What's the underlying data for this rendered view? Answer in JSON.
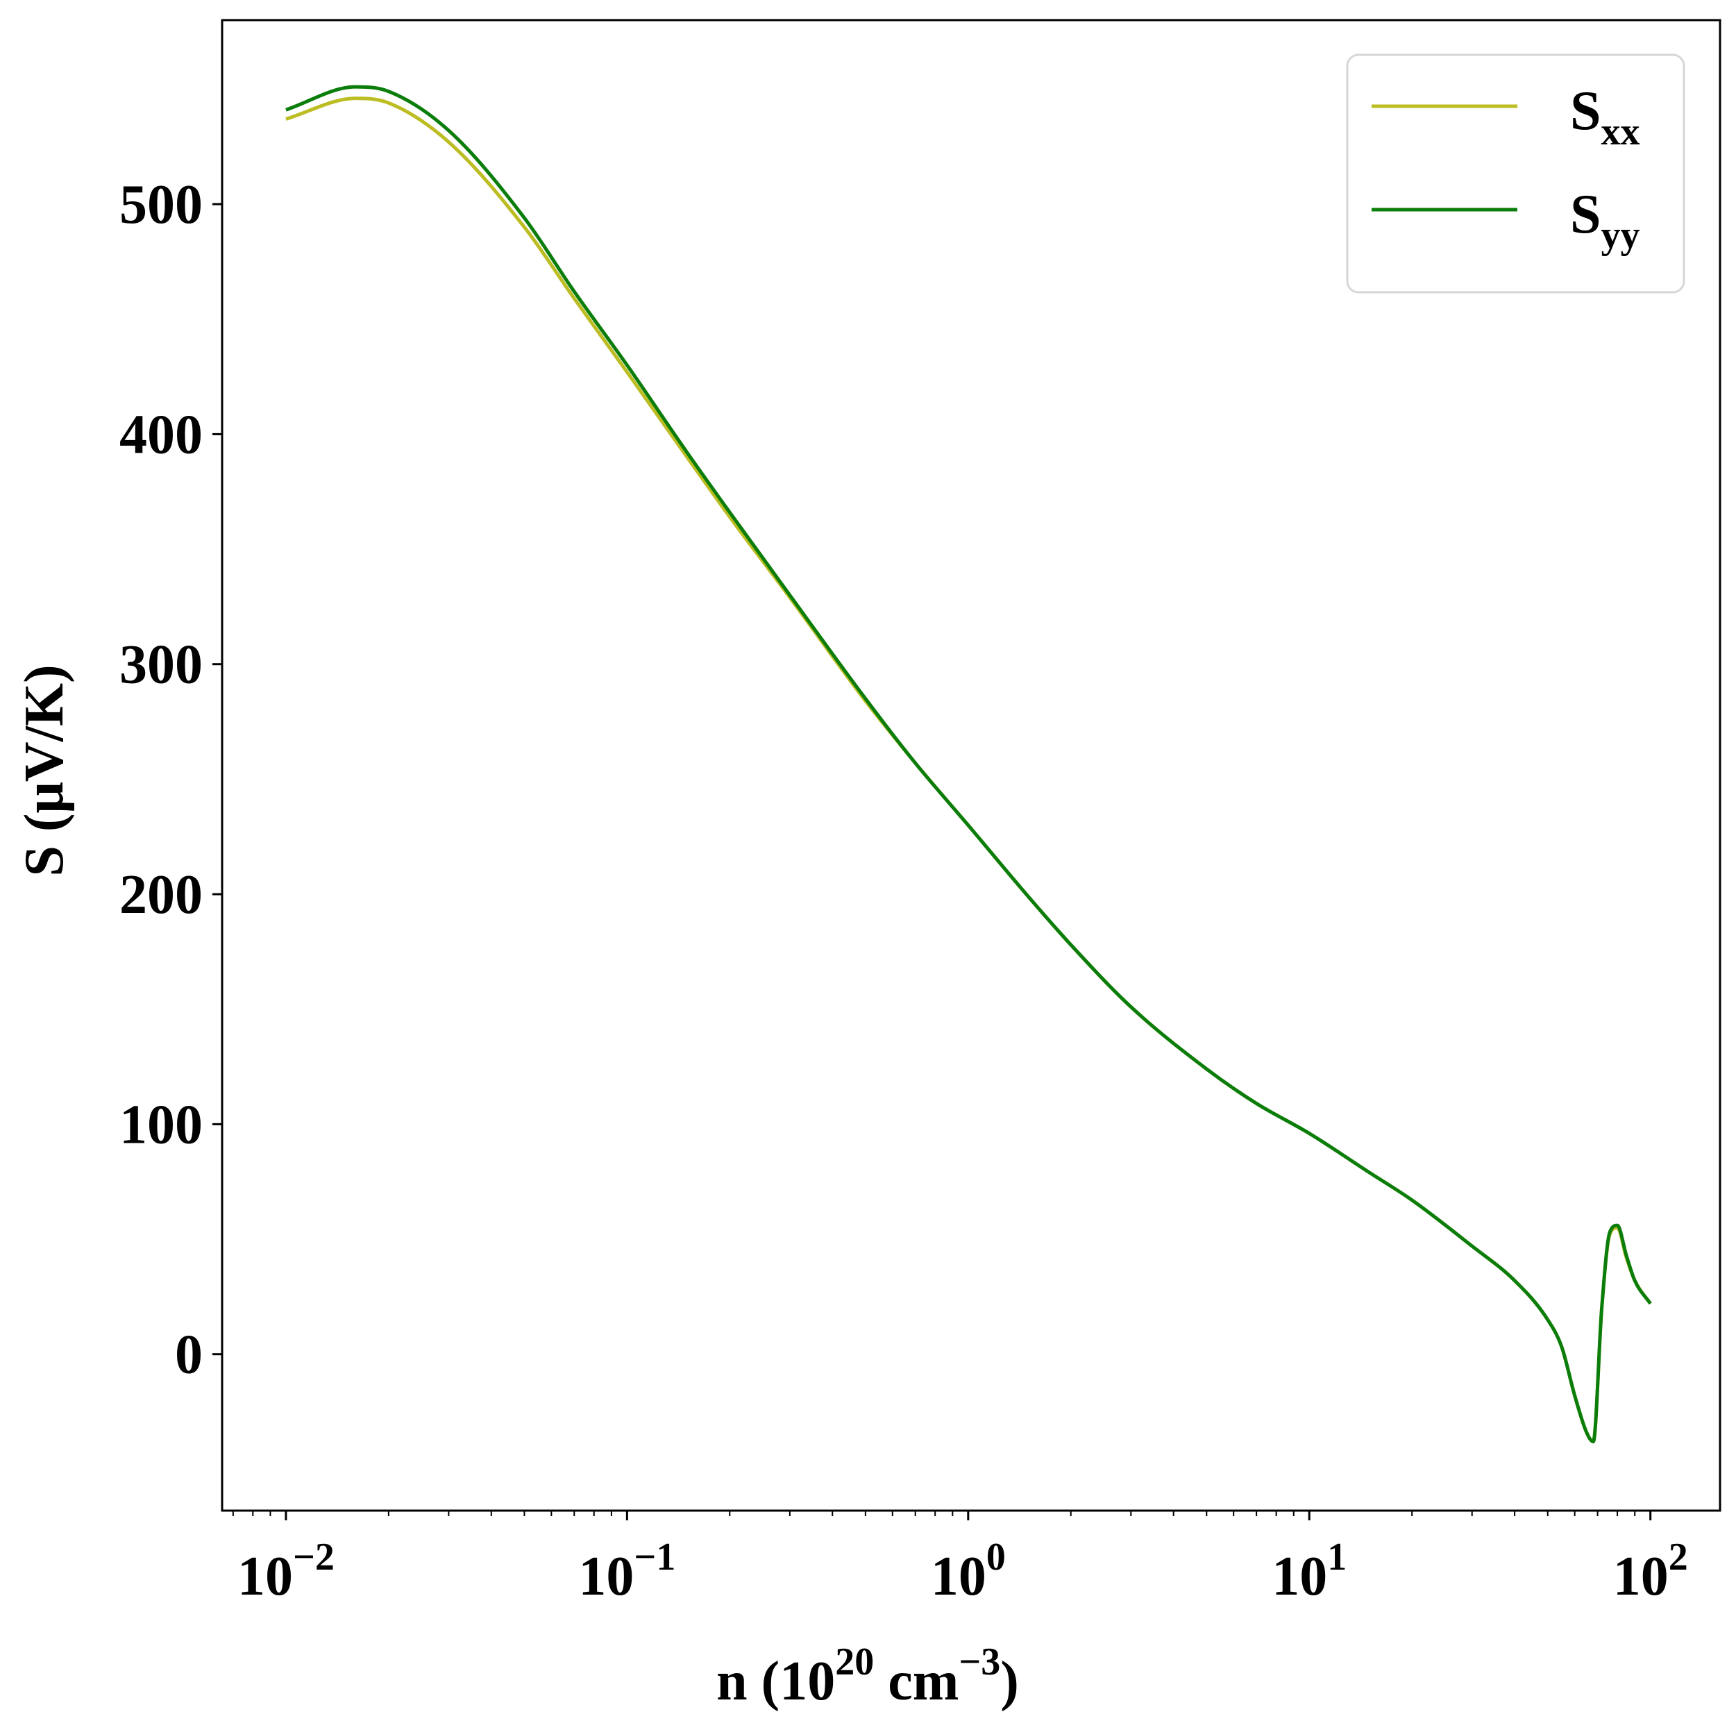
{
  "chart_data": {
    "type": "line",
    "xscale": "log",
    "xlim": [
      0.0065,
      160
    ],
    "ylim": [
      -68,
      580
    ],
    "xlabel": {
      "main": "n (10",
      "sup1": "20",
      "mid": " cm",
      "sup2": "−3",
      "end": ")"
    },
    "ylabel": "S (μV/K)",
    "yticks": [
      {
        "value": 0,
        "label": "0"
      },
      {
        "value": 100,
        "label": "100"
      },
      {
        "value": 200,
        "label": "200"
      },
      {
        "value": 300,
        "label": "300"
      },
      {
        "value": 400,
        "label": "400"
      },
      {
        "value": 500,
        "label": "500"
      }
    ],
    "xticks": [
      {
        "value": 0.01,
        "base": "10",
        "exp": "−2"
      },
      {
        "value": 0.1,
        "base": "10",
        "exp": "−1"
      },
      {
        "value": 1,
        "base": "10",
        "exp": "0"
      },
      {
        "value": 10,
        "base": "10",
        "exp": "1"
      },
      {
        "value": 100,
        "base": "10",
        "exp": "2"
      }
    ],
    "grid": false,
    "legend": {
      "placement": "top-right"
    },
    "series": [
      {
        "name": "S",
        "sub": "xx",
        "color": "#bcbd22",
        "x": [
          0.01,
          0.016,
          0.02,
          0.03,
          0.05,
          0.07,
          0.1,
          0.15,
          0.2,
          0.3,
          0.5,
          0.7,
          1,
          1.5,
          2,
          3,
          5,
          7,
          10,
          15,
          20,
          30,
          40,
          50,
          55,
          60,
          65,
          68,
          72,
          76,
          80,
          85,
          90,
          100
        ],
        "y": [
          537,
          546,
          544,
          527,
          490,
          459,
          427,
          390,
          364,
          329,
          284,
          257,
          230,
          199,
          178,
          151,
          124,
          109,
          96,
          79,
          67,
          47,
          32,
          15,
          3,
          -18,
          -34,
          -38,
          20,
          52,
          55,
          42,
          32,
          22
        ]
      },
      {
        "name": "S",
        "sub": "yy",
        "color": "#0a7d0a",
        "x": [
          0.01,
          0.016,
          0.02,
          0.03,
          0.05,
          0.07,
          0.1,
          0.15,
          0.2,
          0.3,
          0.5,
          0.7,
          1,
          1.5,
          2,
          3,
          5,
          7,
          10,
          15,
          20,
          30,
          40,
          50,
          55,
          60,
          65,
          68,
          72,
          76,
          80,
          85,
          90,
          100
        ],
        "y": [
          541,
          551,
          549,
          532,
          494,
          462,
          430,
          392,
          366,
          330,
          285,
          257,
          230,
          199,
          178,
          151,
          124,
          109,
          96,
          79,
          67,
          47,
          32,
          15,
          3,
          -18,
          -34,
          -38,
          20,
          53,
          56,
          43,
          32,
          22
        ]
      }
    ]
  }
}
